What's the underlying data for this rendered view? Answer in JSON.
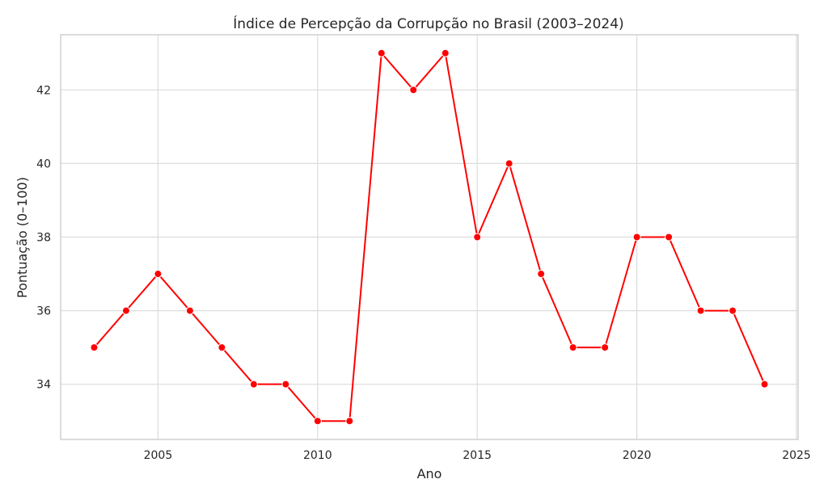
{
  "chart_data": {
    "type": "line",
    "title": "Índice de Percepção da Corrupção no Brasil (2003–2024)",
    "xlabel": "Ano",
    "ylabel": "Pontuação (0–100)",
    "x": [
      2003,
      2004,
      2005,
      2006,
      2007,
      2008,
      2009,
      2010,
      2011,
      2012,
      2013,
      2014,
      2015,
      2016,
      2017,
      2018,
      2019,
      2020,
      2021,
      2022,
      2023,
      2024
    ],
    "series": [
      {
        "values": [
          35,
          36,
          37,
          36,
          35,
          34,
          34,
          33,
          33,
          43,
          42,
          43,
          38,
          40,
          37,
          35,
          35,
          38,
          38,
          36,
          36,
          34
        ]
      }
    ],
    "xlim": [
      2001.95,
      2025.05
    ],
    "ylim": [
      32.5,
      43.5
    ],
    "xticks": [
      2005,
      2010,
      2015,
      2020,
      2025
    ],
    "yticks": [
      34,
      36,
      38,
      40,
      42
    ],
    "grid": true,
    "line_color": "#ff0000",
    "marker_color": "#ff0000"
  }
}
